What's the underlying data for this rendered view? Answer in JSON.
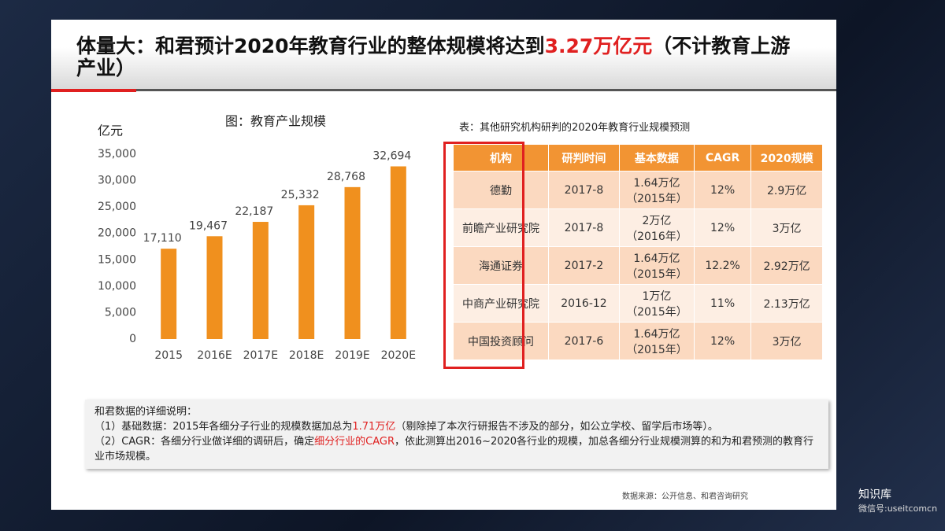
{
  "title_parts": [
    "体量大：和君预计2020年教育行业的整体规模将达到",
    "3.27万亿元",
    "（不计教育上游产业）"
  ],
  "chart_data": {
    "type": "bar",
    "title": "图：教育产业规模",
    "y_label": "亿元",
    "categories": [
      "2015",
      "2016E",
      "2017E",
      "2018E",
      "2019E",
      "2020E"
    ],
    "values": [
      17110,
      19467,
      22187,
      25332,
      28768,
      32694
    ],
    "value_labels": [
      "17,110",
      "19,467",
      "22,187",
      "25,332",
      "28,768",
      "32,694"
    ],
    "color": "#f0901e",
    "ylim": [
      0,
      35000
    ],
    "yticks": [
      0,
      {
        "value": 5000,
        "label": "5,000"
      },
      {
        "value": 10000,
        "label": "10,000"
      },
      {
        "value": 15000,
        "label": "15,000"
      },
      {
        "value": 20000,
        "label": "20,000"
      },
      {
        "value": 25000,
        "label": "25,000"
      },
      {
        "value": 30000,
        "label": "30,000"
      },
      {
        "value": 35000,
        "label": "35,000"
      }
    ],
    "grid": false
  },
  "table": {
    "caption": "表：其他研究机构研判的2020年教育行业规模预测",
    "header": [
      "机构",
      "研判时间",
      "基本数据",
      "CAGR",
      "2020规模"
    ],
    "rows": [
      [
        "德勤",
        "2017-8",
        "1.64万亿（2015年）",
        "12%",
        "2.9万亿"
      ],
      [
        "前瞻产业研究院",
        "2017-8",
        "2万亿（2016年）",
        "12%",
        "3万亿"
      ],
      [
        "海通证券",
        "2017-2",
        "1.64万亿（2015年）",
        "12.2%",
        "2.92万亿"
      ],
      [
        "中商产业研究院",
        "2016-12",
        "1万亿（2015年）",
        "11%",
        "2.13万亿"
      ],
      [
        "中国投资顾问",
        "2017-6",
        "1.64万亿（2015年）",
        "12%",
        "3万亿"
      ]
    ]
  },
  "notes": {
    "heading": "和君数据的详细说明：",
    "note1": [
      "（1）基础数据：2015年各细分子行业的规模数据加总为",
      "1.71万亿",
      "（剔除掉了本次行研报告不涉及的部分，如公立学校、留学后市场等）。"
    ],
    "note2": [
      "（2）CAGR：各细分行业做详细的调研后，确定",
      "细分行业的CAGR",
      "，依此测算出2016~2020各行业的规模，加总各细分行业规模测算的和为和君预测的教育行业市场规模。"
    ]
  },
  "source": "数据来源：公开信息、和君咨询研究",
  "watermark": {
    "name": "知识库",
    "id": "微信号:useitcomcn"
  }
}
